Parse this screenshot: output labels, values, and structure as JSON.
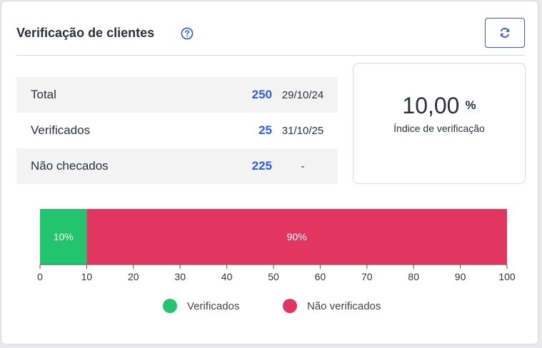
{
  "header": {
    "title": "Verificação de clientes",
    "help_icon": "question-circle-icon",
    "refresh_icon": "refresh-icon"
  },
  "stats": [
    {
      "label": "Total",
      "value": "250",
      "date": "29/10/24"
    },
    {
      "label": "Verificados",
      "value": "25",
      "date": "31/10/25"
    },
    {
      "label": "Não checados",
      "value": "225",
      "date": "-"
    }
  ],
  "index": {
    "value": "10,00",
    "unit": "%",
    "label": "Índice de verificação"
  },
  "colors": {
    "accent": "#2d5be3",
    "verified": "#22c56e",
    "not_verified": "#e23660"
  },
  "chart_data": {
    "type": "bar",
    "orientation": "horizontal-stacked",
    "series": [
      {
        "name": "Verificados",
        "value": 10,
        "label": "10%",
        "color": "#22c56e"
      },
      {
        "name": "Não verificados",
        "value": 90,
        "label": "90%",
        "color": "#e23660"
      }
    ],
    "xlim": [
      0,
      100
    ],
    "xticks": [
      0,
      10,
      20,
      30,
      40,
      50,
      60,
      70,
      80,
      90,
      100
    ],
    "legend_placement": "bottom-center",
    "grid": false
  }
}
